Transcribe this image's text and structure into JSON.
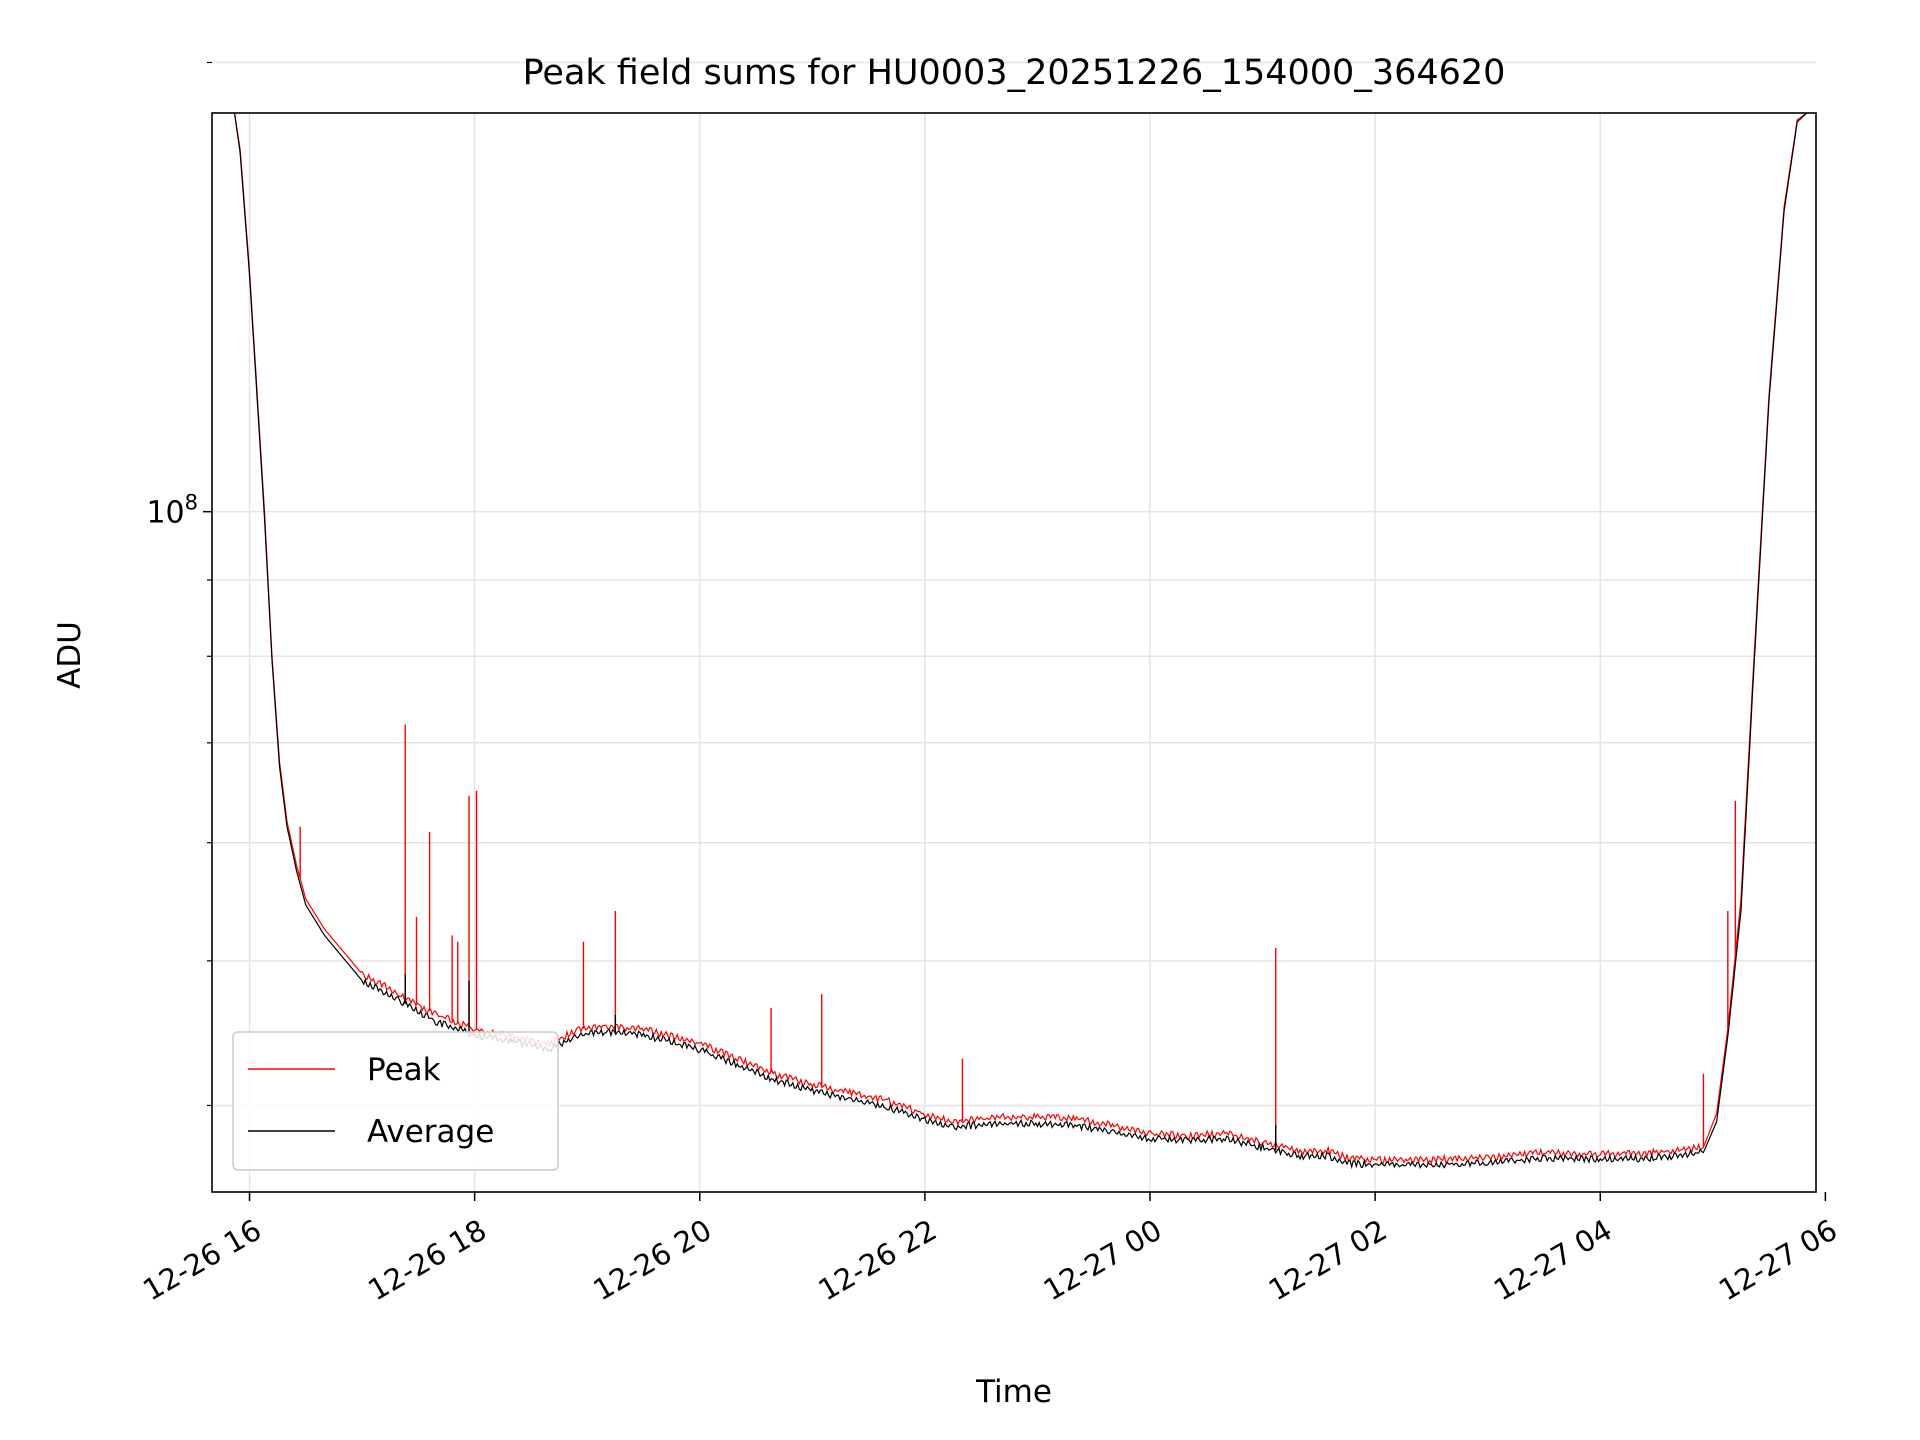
{
  "chart_data": {
    "type": "line",
    "title": "Peak field sums for HU0003_20251226_154000_364620",
    "xlabel": "Time",
    "ylabel": "ADU",
    "yscale": "log",
    "ylim": [
      35000000,
      185000000
    ],
    "xlim": [
      "2025-12-26 15:40",
      "2025-12-27 05:55"
    ],
    "x_ticks": [
      {
        "t": "2025-12-26 16:00",
        "label": "12-26 16"
      },
      {
        "t": "2025-12-26 18:00",
        "label": "12-26 18"
      },
      {
        "t": "2025-12-26 20:00",
        "label": "12-26 20"
      },
      {
        "t": "2025-12-26 22:00",
        "label": "12-26 22"
      },
      {
        "t": "2025-12-27 00:00",
        "label": "12-27 00"
      },
      {
        "t": "2025-12-27 02:00",
        "label": "12-27 02"
      },
      {
        "t": "2025-12-27 04:00",
        "label": "12-27 04"
      },
      {
        "t": "2025-12-27 06:00",
        "label": "12-27 06"
      }
    ],
    "y_major_ticks": [
      {
        "value": 100000000,
        "base": "10",
        "exp": "8"
      }
    ],
    "y_minor_ticks": [
      40000000,
      50000000,
      60000000,
      70000000,
      80000000,
      90000000,
      200000000
    ],
    "grid": true,
    "legend_position": "lower-left",
    "series": [
      {
        "name": "Peak",
        "color": "#ff0000",
        "x": [
          "2025-12-26 15:52",
          "2025-12-26 15:55",
          "2025-12-26 16:00",
          "2025-12-26 16:05",
          "2025-12-26 16:08",
          "2025-12-26 16:12",
          "2025-12-26 16:16",
          "2025-12-26 16:20",
          "2025-12-26 16:25",
          "2025-12-26 16:30",
          "2025-12-26 16:40",
          "2025-12-26 17:00",
          "2025-12-26 17:20",
          "2025-12-26 17:40",
          "2025-12-26 18:00",
          "2025-12-26 18:20",
          "2025-12-26 18:40",
          "2025-12-26 18:55",
          "2025-12-26 19:10",
          "2025-12-26 19:30",
          "2025-12-26 20:00",
          "2025-12-26 20:20",
          "2025-12-26 20:40",
          "2025-12-26 21:00",
          "2025-12-26 21:20",
          "2025-12-26 21:40",
          "2025-12-26 22:00",
          "2025-12-26 22:15",
          "2025-12-26 22:40",
          "2025-12-26 23:00",
          "2025-12-26 23:20",
          "2025-12-26 23:40",
          "2025-12-27 00:00",
          "2025-12-27 00:20",
          "2025-12-27 00:40",
          "2025-12-27 01:00",
          "2025-12-27 01:20",
          "2025-12-27 01:35",
          "2025-12-27 01:45",
          "2025-12-27 02:00",
          "2025-12-27 02:30",
          "2025-12-27 03:00",
          "2025-12-27 03:30",
          "2025-12-27 04:00",
          "2025-12-27 04:30",
          "2025-12-27 04:55",
          "2025-12-27 05:02",
          "2025-12-27 05:08",
          "2025-12-27 05:15",
          "2025-12-27 05:22",
          "2025-12-27 05:30",
          "2025-12-27 05:38",
          "2025-12-27 05:45",
          "2025-12-27 05:50"
        ],
        "y": [
          185000000,
          175000000,
          145000000,
          115000000,
          100000000,
          80000000,
          68000000,
          62000000,
          58000000,
          55000000,
          52500000,
          49000000,
          47500000,
          46000000,
          45000000,
          44500000,
          44000000,
          45000000,
          45200000,
          45000000,
          44000000,
          43000000,
          42000000,
          41300000,
          40800000,
          40300000,
          39500000,
          39000000,
          39300000,
          39300000,
          39200000,
          38800000,
          38300000,
          38200000,
          38300000,
          37800000,
          37300000,
          37300000,
          36900000,
          36800000,
          36800000,
          36900000,
          37200000,
          37100000,
          37200000,
          37500000,
          39500000,
          45000000,
          55000000,
          80000000,
          120000000,
          160000000,
          183000000,
          185000000
        ],
        "spikes": [
          [
            "2025-12-26 16:27",
            61500000
          ],
          [
            "2025-12-26 17:23",
            72000000
          ],
          [
            "2025-12-26 17:29",
            53500000
          ],
          [
            "2025-12-26 17:36",
            61000000
          ],
          [
            "2025-12-26 17:48",
            52000000
          ],
          [
            "2025-12-26 17:51",
            51500000
          ],
          [
            "2025-12-26 17:57",
            64500000
          ],
          [
            "2025-12-26 18:01",
            65000000
          ],
          [
            "2025-12-26 18:58",
            51500000
          ],
          [
            "2025-12-26 19:15",
            54000000
          ],
          [
            "2025-12-26 20:38",
            46500000
          ],
          [
            "2025-12-26 21:05",
            47500000
          ],
          [
            "2025-12-26 22:20",
            43000000
          ],
          [
            "2025-12-27 01:07",
            51000000
          ],
          [
            "2025-12-27 04:55",
            42000000
          ],
          [
            "2025-12-27 05:08",
            54000000
          ],
          [
            "2025-12-27 05:12",
            64000000
          ]
        ]
      },
      {
        "name": "Average",
        "color": "#000000",
        "x": [
          "2025-12-26 15:52",
          "2025-12-26 15:55",
          "2025-12-26 16:00",
          "2025-12-26 16:05",
          "2025-12-26 16:08",
          "2025-12-26 16:12",
          "2025-12-26 16:16",
          "2025-12-26 16:20",
          "2025-12-26 16:25",
          "2025-12-26 16:30",
          "2025-12-26 16:40",
          "2025-12-26 17:00",
          "2025-12-26 17:20",
          "2025-12-26 17:40",
          "2025-12-26 18:00",
          "2025-12-26 18:20",
          "2025-12-26 18:40",
          "2025-12-26 18:55",
          "2025-12-26 19:10",
          "2025-12-26 19:30",
          "2025-12-26 20:00",
          "2025-12-26 20:20",
          "2025-12-26 20:40",
          "2025-12-26 21:00",
          "2025-12-26 21:20",
          "2025-12-26 21:40",
          "2025-12-26 22:00",
          "2025-12-26 22:15",
          "2025-12-26 22:40",
          "2025-12-26 23:00",
          "2025-12-26 23:20",
          "2025-12-26 23:40",
          "2025-12-27 00:00",
          "2025-12-27 00:20",
          "2025-12-27 00:40",
          "2025-12-27 01:00",
          "2025-12-27 01:20",
          "2025-12-27 01:35",
          "2025-12-27 01:45",
          "2025-12-27 02:00",
          "2025-12-27 02:30",
          "2025-12-27 03:00",
          "2025-12-27 03:30",
          "2025-12-27 04:00",
          "2025-12-27 04:30",
          "2025-12-27 04:55",
          "2025-12-27 05:02",
          "2025-12-27 05:08",
          "2025-12-27 05:15",
          "2025-12-27 05:22",
          "2025-12-27 05:30",
          "2025-12-27 05:38",
          "2025-12-27 05:45",
          "2025-12-27 05:50"
        ],
        "y": [
          185000000,
          174000000,
          144000000,
          114000000,
          99000000,
          79500000,
          67500000,
          61500000,
          57500000,
          54500000,
          52000000,
          48500000,
          47000000,
          45500000,
          44600000,
          44200000,
          43600000,
          44600000,
          44800000,
          44600000,
          43600000,
          42600000,
          41600000,
          40900000,
          40400000,
          39900000,
          39100000,
          38700000,
          38900000,
          38900000,
          38800000,
          38400000,
          38000000,
          37900000,
          38000000,
          37500000,
          37000000,
          37000000,
          36600000,
          36500000,
          36500000,
          36600000,
          36900000,
          36800000,
          36900000,
          37200000,
          39000000,
          44500000,
          54000000,
          79000000,
          119000000,
          159000000,
          182500000,
          185000000
        ],
        "spikes": [
          [
            "2025-12-26 17:23",
            49000000
          ],
          [
            "2025-12-26 17:57",
            48500000
          ],
          [
            "2025-12-26 19:15",
            46000000
          ],
          [
            "2025-12-27 01:07",
            38800000
          ]
        ]
      }
    ]
  }
}
